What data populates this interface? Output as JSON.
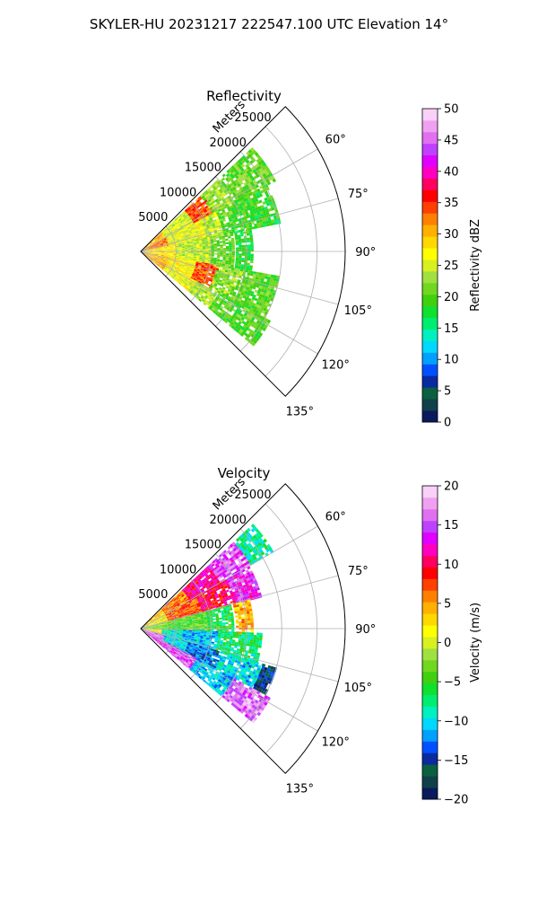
{
  "figure": {
    "title": "SKYLER-HU  20231217  222547.100 UTC Elevation 14°"
  },
  "chart_data": [
    {
      "type": "heatmap",
      "projection": "polar-sector",
      "title": "Reflectivity",
      "radial_axis": {
        "label": "Meters",
        "ticks": [
          5000,
          10000,
          15000,
          20000,
          25000
        ],
        "tick_labels": [
          "5000",
          "10000",
          "15000",
          "20000",
          "25000"
        ],
        "range": [
          0,
          29000
        ]
      },
      "angular_axis": {
        "range_deg": [
          45,
          135
        ],
        "ticks_deg": [
          60,
          75,
          90,
          105,
          120,
          135
        ],
        "tick_labels": [
          "60°",
          "75°",
          "90°",
          "105°",
          "120°",
          "135°"
        ]
      },
      "grid": true,
      "colorbar": {
        "label": "Reflectivity dBZ",
        "range": [
          0,
          50
        ],
        "ticks": [
          0,
          5,
          10,
          15,
          20,
          25,
          30,
          35,
          40,
          45,
          50
        ],
        "tick_labels": [
          "0",
          "5",
          "10",
          "15",
          "20",
          "25",
          "30",
          "35",
          "40",
          "45",
          "50"
        ],
        "colors": [
          "#0a1a5c",
          "#10404a",
          "#0a6040",
          "#0a2aa0",
          "#0050ff",
          "#00a0ff",
          "#00d8ff",
          "#00f0c0",
          "#00ee70",
          "#10e030",
          "#40d010",
          "#70d820",
          "#a0e040",
          "#d8f020",
          "#ffff00",
          "#ffd800",
          "#ffb000",
          "#ff8000",
          "#ff4000",
          "#ff0000",
          "#ff0060",
          "#ff00c0",
          "#e000ff",
          "#c040ff",
          "#e070f0",
          "#f0a0f0",
          "#f8d0f8"
        ]
      },
      "field": {
        "max_range_m": 22000,
        "sectors": [
          {
            "az": [
              47,
              62
            ],
            "bands": [
              {
                "r": [
                  0,
                  4000
                ],
                "value": 30
              },
              {
                "r": [
                  4000,
                  8500
                ],
                "value": 25
              },
              {
                "r": [
                  8500,
                  11500
                ],
                "value": 34
              },
              {
                "r": [
                  11500,
                  14500
                ],
                "value": 23
              },
              {
                "r": [
                  14500,
                  21500
                ],
                "value": 21
              }
            ]
          },
          {
            "az": [
              62,
              78
            ],
            "bands": [
              {
                "r": [
                  0,
                  4000
                ],
                "value": 33
              },
              {
                "r": [
                  4000,
                  9500
                ],
                "value": 26
              },
              {
                "r": [
                  9500,
                  12000
                ],
                "value": 24
              },
              {
                "r": [
                  12000,
                  16500
                ],
                "value": 20
              },
              {
                "r": [
                  16500,
                  20000
                ],
                "value": 19
              }
            ]
          },
          {
            "az": [
              78,
              100
            ],
            "bands": [
              {
                "r": [
                  0,
                  5000
                ],
                "value": 28
              },
              {
                "r": [
                  5000,
                  10000
                ],
                "value": 24
              },
              {
                "r": [
                  10000,
                  13000
                ],
                "value": 21
              },
              {
                "r": [
                  13500,
                  16000
                ],
                "value": 18
              }
            ]
          },
          {
            "az": [
              100,
              118
            ],
            "bands": [
              {
                "r": [
                  0,
                  4000
                ],
                "value": 30
              },
              {
                "r": [
                  4000,
                  8000
                ],
                "value": 27
              },
              {
                "r": [
                  8000,
                  11000
                ],
                "value": 34
              },
              {
                "r": [
                  11000,
                  15000
                ],
                "value": 22
              },
              {
                "r": [
                  15000,
                  20000
                ],
                "value": 20
              }
            ]
          },
          {
            "az": [
              118,
              130
            ],
            "bands": [
              {
                "r": [
                  0,
                  4000
                ],
                "value": 31
              },
              {
                "r": [
                  4000,
                  9000
                ],
                "value": 26
              },
              {
                "r": [
                  9000,
                  12500
                ],
                "value": 23
              },
              {
                "r": [
                  12500,
                  20500
                ],
                "value": 20
              }
            ]
          }
        ]
      }
    },
    {
      "type": "heatmap",
      "projection": "polar-sector",
      "title": "Velocity",
      "radial_axis": {
        "label": "Meters",
        "ticks": [
          5000,
          10000,
          15000,
          20000,
          25000
        ],
        "tick_labels": [
          "5000",
          "10000",
          "15000",
          "20000",
          "25000"
        ],
        "range": [
          0,
          29000
        ]
      },
      "angular_axis": {
        "range_deg": [
          45,
          135
        ],
        "ticks_deg": [
          60,
          75,
          90,
          105,
          120,
          135
        ],
        "tick_labels": [
          "60°",
          "75°",
          "90°",
          "105°",
          "120°",
          "135°"
        ]
      },
      "grid": true,
      "colorbar": {
        "label": "Velocity (m/s)",
        "range": [
          -20,
          20
        ],
        "ticks": [
          -20,
          -15,
          -10,
          -5,
          0,
          5,
          10,
          15,
          20
        ],
        "tick_labels": [
          "−20",
          "−15",
          "−10",
          "−5",
          "0",
          "5",
          "10",
          "15",
          "20"
        ],
        "colors": [
          "#0a1a5c",
          "#10404a",
          "#0a6040",
          "#0a2aa0",
          "#0050ff",
          "#00a0ff",
          "#00d8ff",
          "#00f0c0",
          "#00ee70",
          "#10e030",
          "#40d010",
          "#70d820",
          "#a0e040",
          "#d8f020",
          "#ffff00",
          "#ffd800",
          "#ffb000",
          "#ff8000",
          "#ff4000",
          "#ff0000",
          "#ff0060",
          "#ff00c0",
          "#e000ff",
          "#c040ff",
          "#e070f0",
          "#f0a0f0",
          "#f8d0f8"
        ]
      },
      "field": {
        "max_range_m": 22000,
        "sectors": [
          {
            "az": [
              47,
              60
            ],
            "bands": [
              {
                "r": [
                  0,
                  4000
                ],
                "value": 3
              },
              {
                "r": [
                  4000,
                  8000
                ],
                "value": 6
              },
              {
                "r": [
                  8000,
                  13000
                ],
                "value": 11
              },
              {
                "r": [
                  13000,
                  18000
                ],
                "value": 15
              },
              {
                "r": [
                  18000,
                  21500
                ],
                "value": -8
              }
            ]
          },
          {
            "az": [
              60,
              75
            ],
            "bands": [
              {
                "r": [
                  0,
                  4000
                ],
                "value": 1
              },
              {
                "r": [
                  4000,
                  9000
                ],
                "value": 7
              },
              {
                "r": [
                  9000,
                  14000
                ],
                "value": 10
              },
              {
                "r": [
                  14000,
                  17500
                ],
                "value": 14
              }
            ]
          },
          {
            "az": [
              75,
              92
            ],
            "bands": [
              {
                "r": [
                  0,
                  4000
                ],
                "value": -3
              },
              {
                "r": [
                  4000,
                  9500
                ],
                "value": -4
              },
              {
                "r": [
                  9500,
                  13000
                ],
                "value": -6
              },
              {
                "r": [
                  13500,
                  16000
                ],
                "value": 4
              }
            ]
          },
          {
            "az": [
              92,
              106
            ],
            "bands": [
              {
                "r": [
                  0,
                  3000
                ],
                "value": 2
              },
              {
                "r": [
                  3000,
                  6000
                ],
                "value": -9
              },
              {
                "r": [
                  6000,
                  11000
                ],
                "value": -11
              },
              {
                "r": [
                  11000,
                  17000
                ],
                "value": -7
              }
            ]
          },
          {
            "az": [
              106,
              118
            ],
            "bands": [
              {
                "r": [
                  0,
                  3500
                ],
                "value": 16
              },
              {
                "r": [
                  3500,
                  7000
                ],
                "value": -10
              },
              {
                "r": [
                  7000,
                  12000
                ],
                "value": -13
              },
              {
                "r": [
                  12000,
                  18000
                ],
                "value": -10
              },
              {
                "r": [
                  18000,
                  20000
                ],
                "value": -16
              }
            ]
          },
          {
            "az": [
              118,
              130
            ],
            "bands": [
              {
                "r": [
                  0,
                  4000
                ],
                "value": 14
              },
              {
                "r": [
                  4000,
                  9000
                ],
                "value": 15
              },
              {
                "r": [
                  9000,
                  15000
                ],
                "value": -11
              },
              {
                "r": [
                  15000,
                  20500
                ],
                "value": 16
              }
            ]
          }
        ]
      }
    }
  ]
}
